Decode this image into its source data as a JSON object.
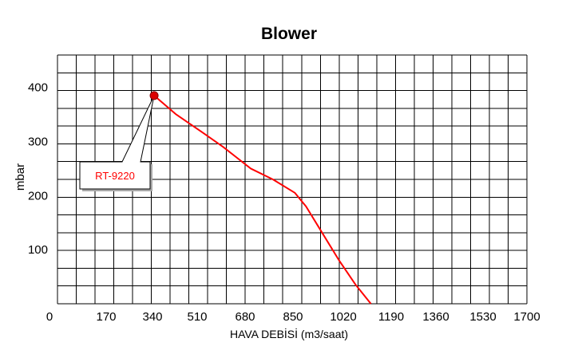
{
  "chart_data": {
    "type": "line",
    "title": "Blower",
    "xlabel": "HAVA DEBİSİ (m3/saat)",
    "ylabel": "mbar",
    "xlim": [
      0,
      1700
    ],
    "ylim": [
      0,
      460
    ],
    "x_ticks": [
      0,
      170,
      340,
      510,
      680,
      850,
      1020,
      1190,
      1360,
      1530,
      1700
    ],
    "x_tick_labels": [
      "0",
      "170",
      "340",
      "510",
      "680",
      "850",
      "1020",
      "1190",
      "1360",
      "1530",
      "1700"
    ],
    "y_ticks": [
      100,
      200,
      300,
      400
    ],
    "y_tick_labels": [
      "100",
      "200",
      "300",
      "400"
    ],
    "grid": true,
    "series": [
      {
        "name": "RT-9220",
        "color": "#ff0000",
        "x": [
          350,
          430,
          530,
          600,
          650,
          700,
          780,
          860,
          900,
          960,
          1020,
          1080,
          1135
        ],
        "y": [
          385,
          350,
          315,
          290,
          270,
          250,
          230,
          205,
          180,
          130,
          80,
          35,
          0
        ]
      }
    ],
    "annotation": {
      "label": "RT-9220",
      "point": [
        350,
        385
      ]
    }
  }
}
